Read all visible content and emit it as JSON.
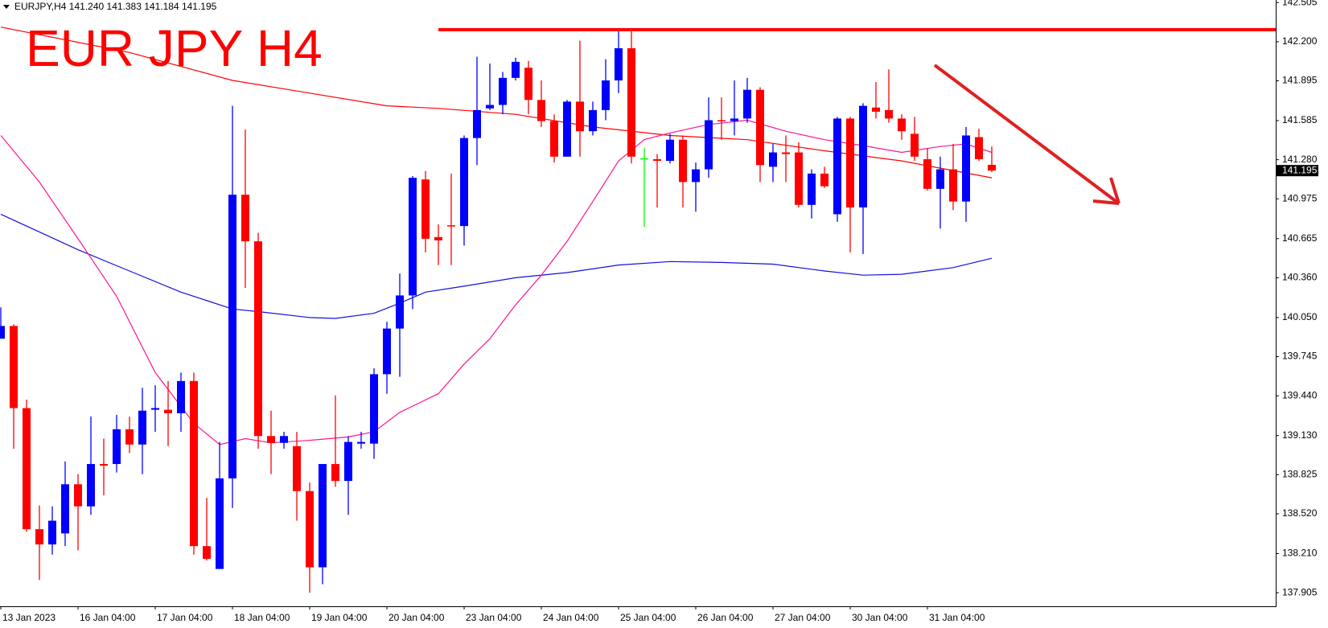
{
  "chart_data": {
    "type": "candlestick",
    "title": "EUR JPY H4",
    "header": "EURJPY,H4  141.240 141.383 141.184 141.195",
    "categories": [
      "13 Jan 2023",
      null,
      null,
      null,
      null,
      null,
      "16 Jan 04:00",
      null,
      null,
      null,
      null,
      null,
      "17 Jan 04:00",
      null,
      null,
      null,
      null,
      null,
      "18 Jan 04:00",
      null,
      null,
      null,
      null,
      null,
      "19 Jan 04:00",
      null,
      null,
      null,
      null,
      null,
      "20 Jan 04:00",
      null,
      null,
      null,
      null,
      null,
      "23 Jan 04:00",
      null,
      null,
      null,
      null,
      null,
      "24 Jan 04:00",
      null,
      null,
      null,
      null,
      null,
      "25 Jan 04:00",
      null,
      null,
      null,
      null,
      null,
      "26 Jan 04:00",
      null,
      null,
      null,
      null,
      null,
      "27 Jan 04:00",
      null,
      null,
      null,
      null,
      null,
      "30 Jan 04:00",
      null,
      null,
      null,
      null,
      null,
      "31 Jan 04:00",
      null,
      null,
      null,
      null,
      null
    ],
    "open": [
      139.885,
      139.984,
      139.344,
      138.4,
      138.281,
      138.367,
      138.75,
      138.578,
      138.908,
      138.908,
      139.179,
      139.06,
      139.331,
      139.331,
      139.304,
      139.555,
      138.268,
      138.09,
      138.796,
      141.007,
      140.644,
      139.126,
      139.073,
      139.047,
      138.697,
      138.103,
      138.908,
      138.776,
      139.067,
      139.067,
      139.608,
      139.964,
      140.222,
      141.126,
      140.677,
      140.769,
      140.763,
      141.449,
      141.68,
      141.707,
      141.918,
      141.997,
      141.746,
      141.581,
      141.304,
      141.733,
      141.502,
      141.667,
      141.898,
      142.149,
      141.291,
      141.284,
      141.271,
      141.436,
      141.106,
      141.205,
      141.588,
      141.581,
      141.601,
      141.825,
      141.225,
      141.337,
      141.337,
      140.928,
      141.172,
      140.855,
      141.601,
      140.908,
      141.687,
      141.667,
      141.601,
      141.482,
      141.284,
      141.053,
      141.205,
      140.954,
      141.456,
      141.24
    ],
    "high": [
      140.129,
      139.997,
      139.41,
      138.585,
      138.578,
      138.928,
      138.829,
      139.278,
      139.106,
      139.291,
      139.278,
      139.502,
      139.522,
      139.555,
      139.621,
      139.621,
      138.644,
      139.08,
      141.7,
      141.515,
      140.71,
      139.324,
      139.159,
      139.159,
      138.763,
      138.908,
      139.443,
      139.126,
      139.159,
      139.654,
      140.017,
      140.393,
      141.152,
      141.192,
      140.776,
      141.172,
      141.469,
      142.083,
      142.03,
      141.964,
      142.076,
      142.05,
      141.898,
      141.634,
      141.746,
      142.208,
      141.733,
      142.063,
      142.281,
      142.281,
      141.37,
      141.324,
      141.482,
      141.469,
      141.258,
      141.766,
      141.766,
      141.898,
      141.918,
      141.845,
      141.403,
      141.469,
      141.416,
      141.205,
      141.225,
      141.614,
      141.614,
      141.72,
      141.885,
      141.984,
      141.634,
      141.614,
      141.37,
      141.304,
      141.403,
      141.535,
      141.522,
      141.383
    ],
    "low": [
      139.885,
      139.027,
      138.38,
      138.004,
      138.202,
      138.268,
      138.235,
      138.512,
      138.664,
      138.842,
      138.994,
      138.829,
      139.159,
      139.047,
      139.159,
      138.202,
      138.156,
      138.09,
      138.565,
      140.281,
      139.027,
      138.829,
      139.027,
      138.466,
      137.905,
      137.971,
      138.73,
      138.512,
      139.027,
      138.948,
      139.456,
      139.588,
      140.116,
      140.558,
      140.459,
      140.459,
      140.611,
      141.238,
      141.667,
      141.634,
      141.898,
      141.634,
      141.535,
      141.258,
      141.304,
      141.304,
      141.469,
      141.588,
      141.799,
      141.251,
      140.756,
      140.908,
      141.251,
      140.908,
      140.875,
      141.139,
      141.436,
      141.469,
      141.568,
      141.106,
      141.106,
      141.106,
      140.908,
      140.822,
      141.06,
      140.796,
      140.558,
      140.545,
      141.601,
      141.568,
      141.436,
      141.271,
      141.04,
      140.743,
      140.888,
      140.796,
      141.271,
      141.184
    ],
    "close": [
      139.984,
      139.344,
      138.4,
      138.281,
      138.466,
      138.75,
      138.578,
      138.908,
      138.895,
      139.179,
      139.06,
      139.324,
      139.344,
      139.304,
      139.555,
      138.268,
      138.169,
      138.796,
      141.007,
      140.644,
      139.126,
      139.073,
      139.126,
      138.697,
      138.103,
      138.908,
      138.776,
      139.08,
      139.08,
      139.608,
      139.964,
      140.222,
      141.139,
      140.664,
      140.651,
      140.763,
      141.449,
      141.667,
      141.707,
      141.918,
      142.043,
      141.746,
      141.581,
      141.304,
      141.733,
      141.502,
      141.667,
      141.898,
      142.149,
      141.304,
      141.291,
      141.271,
      141.436,
      141.106,
      141.205,
      141.588,
      141.581,
      141.601,
      141.825,
      141.238,
      141.337,
      141.324,
      140.928,
      141.172,
      141.073,
      141.601,
      140.908,
      141.7,
      141.654,
      141.601,
      141.502,
      141.304,
      141.053,
      141.205,
      140.954,
      141.469,
      141.284,
      141.195
    ],
    "up_color": "#0000ff",
    "down_color": "#ff0000",
    "doji_color": "#00ff00",
    "lines": [
      {
        "color": "#ff0000",
        "x": [
          0,
          10,
          18,
          24,
          30,
          34,
          40,
          46,
          52,
          58,
          64,
          70,
          77
        ],
        "values": [
          142.314,
          142.116,
          141.898,
          141.799,
          141.7,
          141.68,
          141.634,
          141.535,
          141.469,
          141.436,
          141.35,
          141.271,
          141.139
        ]
      },
      {
        "color": "#1010e0",
        "x": [
          0,
          6,
          10,
          14,
          18,
          20,
          24,
          26,
          29,
          31,
          33,
          36,
          40,
          44,
          48,
          52,
          56,
          60,
          64,
          67,
          70,
          74,
          77
        ],
        "values": [
          140.855,
          140.578,
          140.413,
          140.248,
          140.116,
          140.096,
          140.05,
          140.043,
          140.083,
          140.162,
          140.248,
          140.294,
          140.36,
          140.4,
          140.459,
          140.486,
          140.479,
          140.466,
          140.413,
          140.38,
          140.387,
          140.439,
          140.512
        ]
      },
      {
        "color": "#ff1493",
        "x": [
          0,
          3,
          6,
          9,
          12,
          15,
          17,
          19,
          21,
          24,
          27,
          29,
          31,
          34,
          36,
          38,
          40,
          42,
          44,
          46,
          48,
          50,
          52,
          55,
          58,
          61,
          64,
          67,
          70,
          73,
          75,
          77
        ],
        "values": [
          141.469,
          141.106,
          140.664,
          140.215,
          139.621,
          139.225,
          139.06,
          139.106,
          139.073,
          139.093,
          139.119,
          139.159,
          139.311,
          139.456,
          139.687,
          139.885,
          140.149,
          140.38,
          140.644,
          140.954,
          141.271,
          141.436,
          141.489,
          141.555,
          141.588,
          141.502,
          141.436,
          141.39,
          141.337,
          141.383,
          141.403,
          141.337
        ]
      }
    ],
    "levels": [
      {
        "value": 142.294,
        "start": 34,
        "color": "#ff0000"
      }
    ],
    "current_price": {
      "value": 141.195,
      "label": "141.195"
    },
    "ylim": [
      137.799,
      142.525
    ],
    "yticks": [
      {
        "value": 142.505,
        "label": "142.505"
      },
      {
        "value": 142.2,
        "label": "142.200"
      },
      {
        "value": 141.895,
        "label": "141.895"
      },
      {
        "value": 141.585,
        "label": "141.585"
      },
      {
        "value": 141.28,
        "label": "141.280"
      },
      {
        "value": 140.975,
        "label": "140.975"
      },
      {
        "value": 140.665,
        "label": "140.665"
      },
      {
        "value": 140.36,
        "label": "140.360"
      },
      {
        "value": 140.05,
        "label": "140.050"
      },
      {
        "value": 139.745,
        "label": "139.745"
      },
      {
        "value": 139.44,
        "label": "139.440"
      },
      {
        "value": 139.13,
        "label": "139.130"
      },
      {
        "value": 138.825,
        "label": "138.825"
      },
      {
        "value": 138.52,
        "label": "138.520"
      },
      {
        "value": 138.21,
        "label": "138.210"
      },
      {
        "value": 137.905,
        "label": "137.905"
      }
    ],
    "grid": false
  }
}
